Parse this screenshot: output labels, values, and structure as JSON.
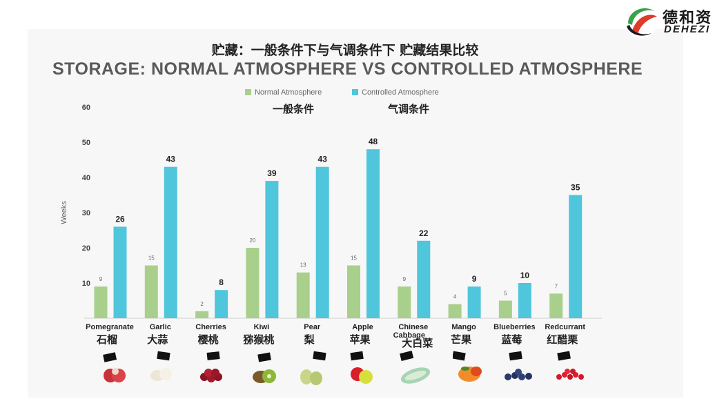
{
  "logo": {
    "name_cn": "德和资",
    "name_en": "DEHEZI",
    "colors": [
      "#e03b2a",
      "#3aa24a",
      "#1c1c1c"
    ]
  },
  "title_cn": "贮藏：一般条件下与气调条件下 贮藏结果比较",
  "title_en": "STORAGE:  NORMAL ATMOSPHERE VS CONTROLLED ATMOSPHERE",
  "legend_cn": [
    "一般条件",
    "气调条件"
  ],
  "fruit_names_cn": [
    "石榴",
    "大蒜",
    "樱桃",
    "猕猴桃",
    "梨",
    "苹果",
    "大白菜",
    "芒果",
    "蓝莓",
    "红醋栗"
  ],
  "colors": {
    "normal": "#a9cf8c",
    "controlled": "#4fc6dc"
  },
  "chart_data": {
    "type": "bar",
    "title": "STORAGE:  NORMAL ATMOSPHERE VS CONTROLLED ATMOSPHERE",
    "xlabel": "",
    "ylabel": "Weeks",
    "ylim": [
      0,
      60
    ],
    "yticks": [
      10,
      20,
      30,
      40,
      50,
      60
    ],
    "categories": [
      "Pomegranate",
      "Garlic",
      "Cherries",
      "Kiwi",
      "Pear",
      "Apple",
      "Chinese Cabbage",
      "Mango",
      "Blueberries",
      "Redcurrant"
    ],
    "series": [
      {
        "name": "Normal Atmosphere",
        "values": [
          9,
          15,
          2,
          20,
          13,
          15,
          9,
          4,
          5,
          7
        ]
      },
      {
        "name": "Controlled Atmosphere",
        "values": [
          26,
          43,
          8,
          39,
          43,
          48,
          22,
          9,
          10,
          35
        ]
      }
    ],
    "legend": "top"
  }
}
